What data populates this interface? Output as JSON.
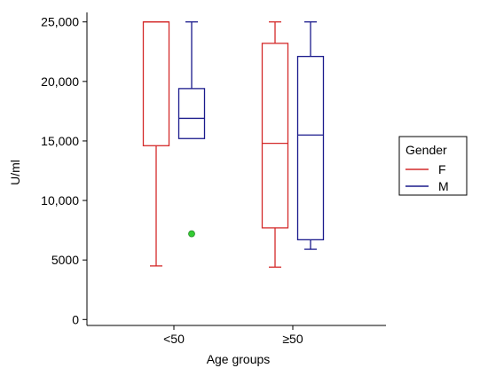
{
  "chart_data": {
    "type": "boxplot",
    "xlabel": "Age groups",
    "ylabel": "U/ml",
    "ylim": [
      -500,
      25500
    ],
    "yticks": [
      {
        "value": 0,
        "label": "0"
      },
      {
        "value": 5000,
        "label": "5000"
      },
      {
        "value": 10000,
        "label": "10,000"
      },
      {
        "value": 15000,
        "label": "15,000"
      },
      {
        "value": 20000,
        "label": "20,000"
      },
      {
        "value": 25000,
        "label": "25,000"
      }
    ],
    "categories": [
      "<50",
      "≥50"
    ],
    "legend": {
      "title": "Gender",
      "position": "right",
      "entries": [
        "F",
        "M"
      ]
    },
    "series": [
      {
        "name": "F",
        "color": "#d42a2a",
        "boxes": [
          {
            "category": "<50",
            "min": 4500,
            "q1": 14600,
            "median": 25000,
            "q3": 25000,
            "max": 25000,
            "outliers": []
          },
          {
            "category": "≥50",
            "min": 4400,
            "q1": 7700,
            "median": 14800,
            "q3": 23200,
            "max": 25000,
            "outliers": []
          }
        ]
      },
      {
        "name": "M",
        "color": "#1a1a8c",
        "boxes": [
          {
            "category": "<50",
            "min": 15200,
            "q1": 15200,
            "median": 16900,
            "q3": 19400,
            "max": 25000,
            "outliers": [
              7200
            ]
          },
          {
            "category": "≥50",
            "min": 5900,
            "q1": 6700,
            "median": 15500,
            "q3": 22100,
            "max": 25000,
            "outliers": []
          }
        ]
      }
    ],
    "outlier_color": "#33cc33",
    "grid": false
  }
}
